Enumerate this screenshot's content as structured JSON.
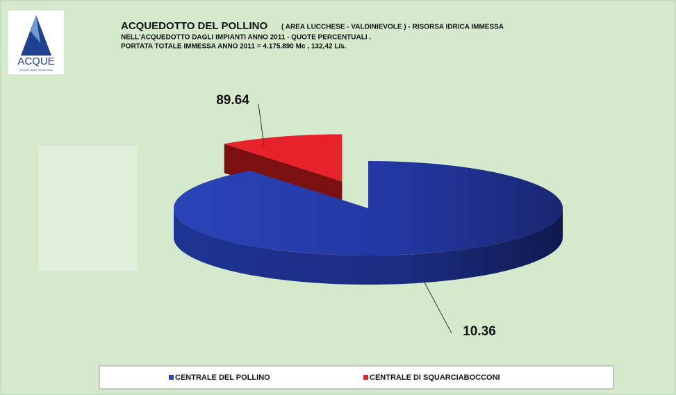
{
  "logo": {
    "text": "ACQUE",
    "tagline": "ACQUE SpA I Servizi Idrici"
  },
  "chart_data": {
    "type": "pie3d",
    "title": "ACQUEDOTTO DEL POLLINO",
    "subtitle": [
      "( AREA LUCCHESE - VALDINIEVOLE ) - RISORSA IDRICA IMMESSA",
      "NELL'ACQUEDOTTO  DAGLI IMPIANTI  ANNO 2011 - QUOTE PERCENTUALI .",
      "PORTATA TOTALE  IMMESSA  ANNO 2011 =  4.175.890  Mc , 132,42 L/s."
    ],
    "categories": [
      "CENTRALE DEL POLLINO",
      "CENTRALE DI SQUARCIABOCCONI"
    ],
    "values": [
      89.64,
      10.36
    ],
    "colors": [
      "#2a43b4",
      "#e8222b"
    ],
    "legend": "bottom"
  }
}
